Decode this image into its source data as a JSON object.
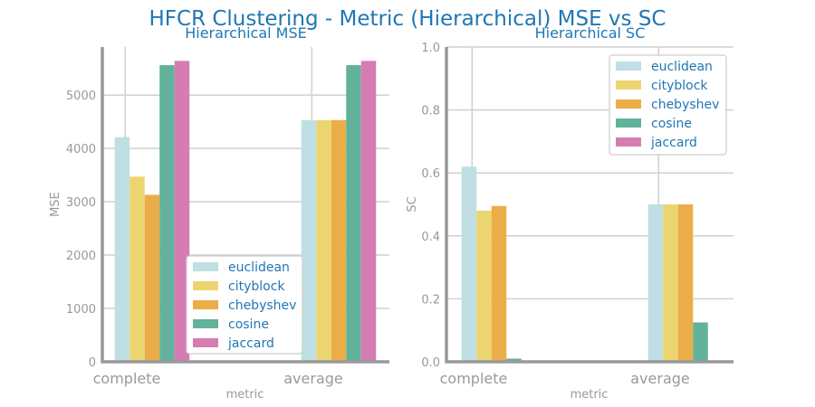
{
  "title": "HFCR Clustering - Metric (Hierarchical) MSE vs SC",
  "colors": {
    "euclidean": "#bfdfe4",
    "cityblock": "#ecd471",
    "chebyshev": "#ebad47",
    "cosine": "#62b29b",
    "jaccard": "#d77bb3",
    "title": "#1f77b4",
    "axis": "#999999",
    "grid": "#d0d0d0"
  },
  "chart_data": [
    {
      "type": "bar",
      "title": "Hierarchical MSE",
      "xlabel": "metric",
      "ylabel": "MSE",
      "categories": [
        "complete",
        "average"
      ],
      "ylim": [
        0,
        5900
      ],
      "yticks": [
        0,
        1000,
        2000,
        3000,
        4000,
        5000
      ],
      "grid": true,
      "legend_position": "lower-right",
      "series": [
        {
          "name": "euclidean",
          "values": [
            4210,
            4530
          ]
        },
        {
          "name": "cityblock",
          "values": [
            3470,
            4530
          ]
        },
        {
          "name": "chebyshev",
          "values": [
            3130,
            4530
          ]
        },
        {
          "name": "cosine",
          "values": [
            5560,
            5560
          ]
        },
        {
          "name": "jaccard",
          "values": [
            5640,
            5640
          ]
        }
      ]
    },
    {
      "type": "bar",
      "title": "Hierarchical SC",
      "xlabel": "metric",
      "ylabel": "SC",
      "categories": [
        "complete",
        "average"
      ],
      "ylim": [
        0,
        1.0
      ],
      "yticks": [
        0.0,
        0.2,
        0.4,
        0.6,
        0.8,
        1.0
      ],
      "grid": true,
      "legend_position": "upper-right",
      "series": [
        {
          "name": "euclidean",
          "values": [
            0.62,
            0.5
          ]
        },
        {
          "name": "cityblock",
          "values": [
            0.48,
            0.5
          ]
        },
        {
          "name": "chebyshev",
          "values": [
            0.495,
            0.5
          ]
        },
        {
          "name": "cosine",
          "values": [
            0.01,
            0.125
          ]
        },
        {
          "name": "jaccard",
          "values": [
            0,
            0
          ]
        }
      ]
    }
  ]
}
